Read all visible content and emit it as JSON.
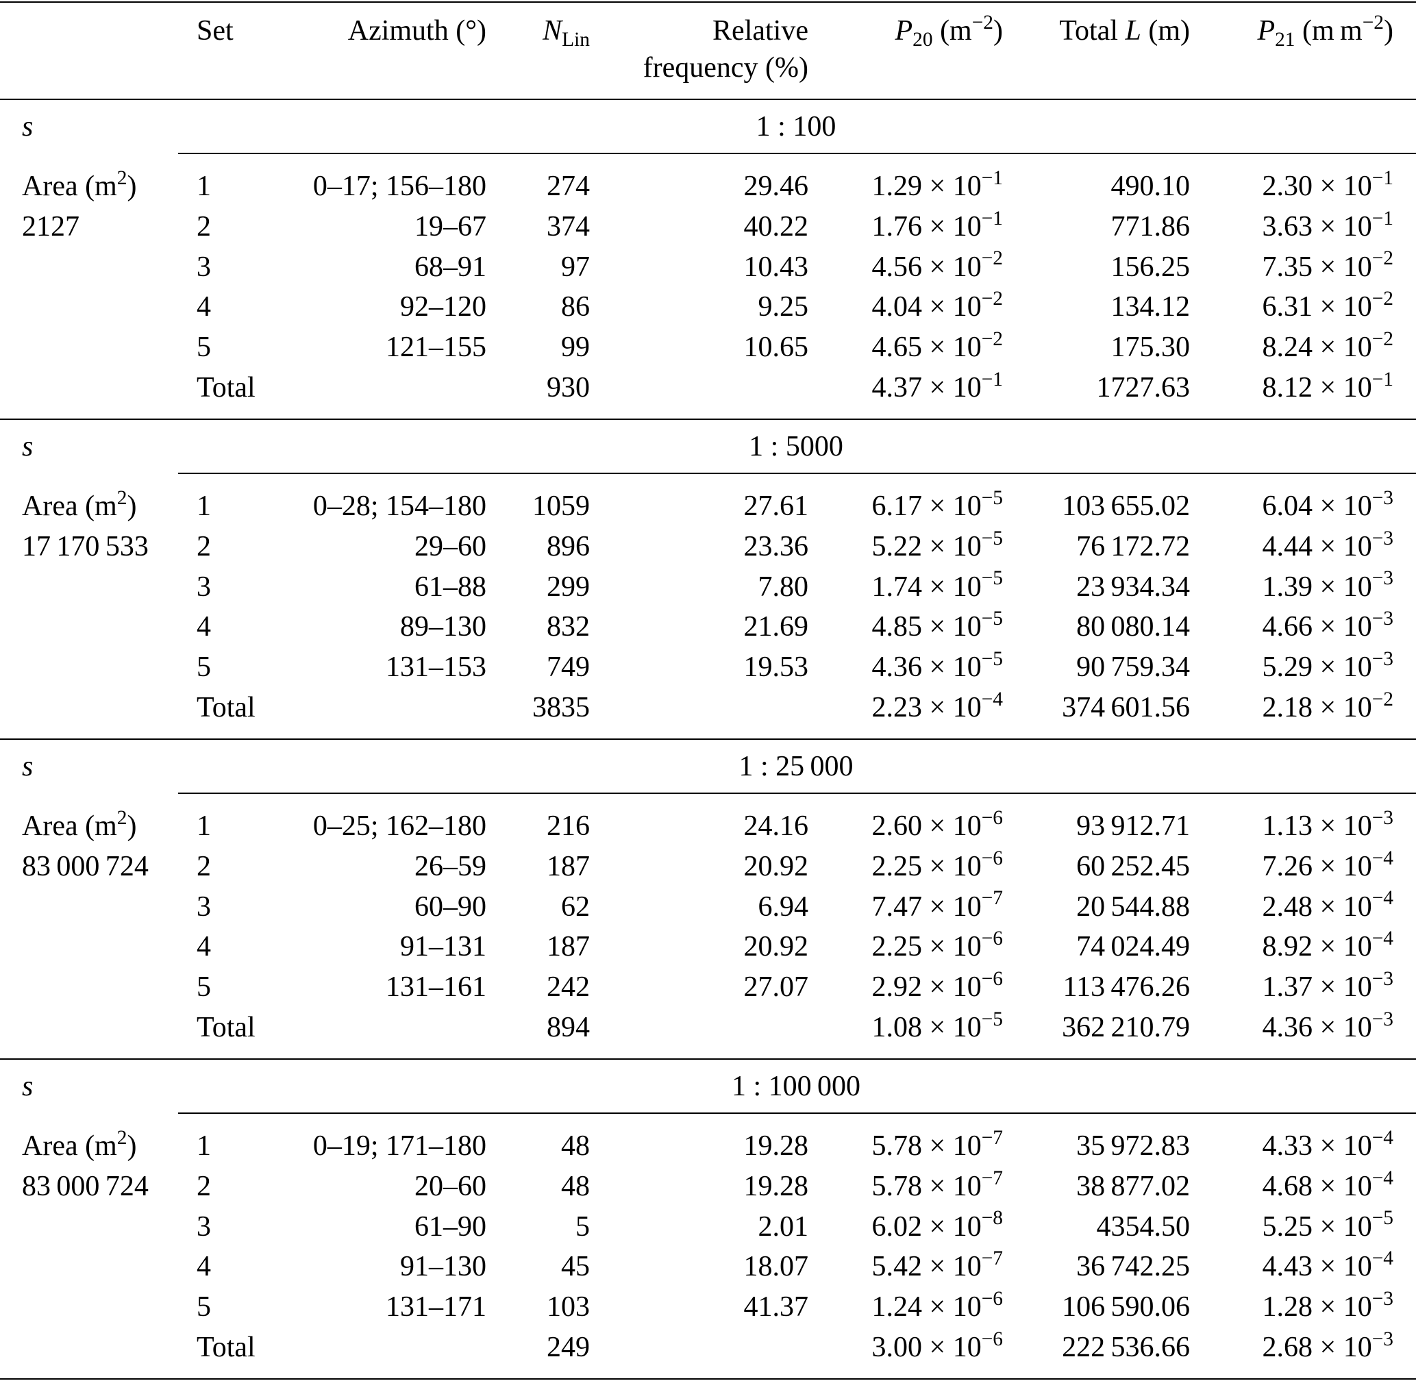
{
  "header": [
    [
      [
        "Set"
      ]
    ],
    [
      [
        "Azimuth (°)"
      ]
    ],
    [
      [
        {
          "i": "N"
        },
        {
          "sub": "Lin"
        }
      ]
    ],
    [
      [
        "Relative"
      ],
      [
        "frequency (%)"
      ]
    ],
    [
      [
        {
          "i": "P"
        },
        {
          "sub": "20"
        },
        " (m",
        {
          "sup": "−2"
        },
        ")"
      ]
    ],
    [
      [
        "Total ",
        {
          "i": "L"
        },
        " (m)"
      ]
    ],
    [
      [
        {
          "i": "P"
        },
        {
          "sub": "21"
        },
        " (m m",
        {
          "sup": "−2"
        },
        ")"
      ]
    ]
  ],
  "sections": [
    {
      "label": [
        {
          "i": "s"
        }
      ],
      "scale": "1 : 100",
      "area_label": [
        "Area (m",
        {
          "sup": "2"
        },
        ")"
      ],
      "area": "2127",
      "rows": [
        [
          "1",
          "0–17; 156–180",
          "274",
          "29.46",
          [
            "1.29 × 10",
            {
              "sup": "−1"
            }
          ],
          "490.10",
          [
            "2.30 × 10",
            {
              "sup": "−1"
            }
          ]
        ],
        [
          "2",
          "19–67",
          "374",
          "40.22",
          [
            "1.76 × 10",
            {
              "sup": "−1"
            }
          ],
          "771.86",
          [
            "3.63 × 10",
            {
              "sup": "−1"
            }
          ]
        ],
        [
          "3",
          "68–91",
          "97",
          "10.43",
          [
            "4.56 × 10",
            {
              "sup": "−2"
            }
          ],
          "156.25",
          [
            "7.35 × 10",
            {
              "sup": "−2"
            }
          ]
        ],
        [
          "4",
          "92–120",
          "86",
          "9.25",
          [
            "4.04 × 10",
            {
              "sup": "−2"
            }
          ],
          "134.12",
          [
            "6.31 × 10",
            {
              "sup": "−2"
            }
          ]
        ],
        [
          "5",
          "121–155",
          "99",
          "10.65",
          [
            "4.65 × 10",
            {
              "sup": "−2"
            }
          ],
          "175.30",
          [
            "8.24 × 10",
            {
              "sup": "−2"
            }
          ]
        ],
        [
          "Total",
          null,
          "930",
          null,
          [
            "4.37 × 10",
            {
              "sup": "−1"
            }
          ],
          "1727.63",
          [
            "8.12 × 10",
            {
              "sup": "−1"
            }
          ]
        ]
      ]
    },
    {
      "label": [
        {
          "i": "s"
        }
      ],
      "scale": "1 : 5000",
      "area_label": [
        "Area (m",
        {
          "sup": "2"
        },
        ")"
      ],
      "area": "17 170 533",
      "rows": [
        [
          "1",
          "0–28; 154–180",
          "1059",
          "27.61",
          [
            "6.17 × 10",
            {
              "sup": "−5"
            }
          ],
          "103 655.02",
          [
            "6.04 × 10",
            {
              "sup": "−3"
            }
          ]
        ],
        [
          "2",
          "29–60",
          "896",
          "23.36",
          [
            "5.22 × 10",
            {
              "sup": "−5"
            }
          ],
          "76 172.72",
          [
            "4.44 × 10",
            {
              "sup": "−3"
            }
          ]
        ],
        [
          "3",
          "61–88",
          "299",
          "7.80",
          [
            "1.74 × 10",
            {
              "sup": "−5"
            }
          ],
          "23 934.34",
          [
            "1.39 × 10",
            {
              "sup": "−3"
            }
          ]
        ],
        [
          "4",
          "89–130",
          "832",
          "21.69",
          [
            "4.85 × 10",
            {
              "sup": "−5"
            }
          ],
          "80 080.14",
          [
            "4.66 × 10",
            {
              "sup": "−3"
            }
          ]
        ],
        [
          "5",
          "131–153",
          "749",
          "19.53",
          [
            "4.36 × 10",
            {
              "sup": "−5"
            }
          ],
          "90 759.34",
          [
            "5.29 × 10",
            {
              "sup": "−3"
            }
          ]
        ],
        [
          "Total",
          null,
          "3835",
          null,
          [
            "2.23 × 10",
            {
              "sup": "−4"
            }
          ],
          "374 601.56",
          [
            "2.18 × 10",
            {
              "sup": "−2"
            }
          ]
        ]
      ]
    },
    {
      "label": [
        {
          "i": "s"
        }
      ],
      "scale": "1 : 25 000",
      "area_label": [
        "Area (m",
        {
          "sup": "2"
        },
        ")"
      ],
      "area": "83 000 724",
      "rows": [
        [
          "1",
          "0–25; 162–180",
          "216",
          "24.16",
          [
            "2.60 × 10",
            {
              "sup": "−6"
            }
          ],
          "93 912.71",
          [
            "1.13 × 10",
            {
              "sup": "−3"
            }
          ]
        ],
        [
          "2",
          "26–59",
          "187",
          "20.92",
          [
            "2.25 × 10",
            {
              "sup": "−6"
            }
          ],
          "60 252.45",
          [
            "7.26 × 10",
            {
              "sup": "−4"
            }
          ]
        ],
        [
          "3",
          "60–90",
          "62",
          "6.94",
          [
            "7.47 × 10",
            {
              "sup": "−7"
            }
          ],
          "20 544.88",
          [
            "2.48 × 10",
            {
              "sup": "−4"
            }
          ]
        ],
        [
          "4",
          "91–131",
          "187",
          "20.92",
          [
            "2.25 × 10",
            {
              "sup": "−6"
            }
          ],
          "74 024.49",
          [
            "8.92 × 10",
            {
              "sup": "−4"
            }
          ]
        ],
        [
          "5",
          "131–161",
          "242",
          "27.07",
          [
            "2.92 × 10",
            {
              "sup": "−6"
            }
          ],
          "113 476.26",
          [
            "1.37 × 10",
            {
              "sup": "−3"
            }
          ]
        ],
        [
          "Total",
          null,
          "894",
          null,
          [
            "1.08 × 10",
            {
              "sup": "−5"
            }
          ],
          "362 210.79",
          [
            "4.36 × 10",
            {
              "sup": "−3"
            }
          ]
        ]
      ]
    },
    {
      "label": [
        {
          "i": "s"
        }
      ],
      "scale": "1 : 100 000",
      "area_label": [
        "Area (m",
        {
          "sup": "2"
        },
        ")"
      ],
      "area": "83 000 724",
      "rows": [
        [
          "1",
          "0–19; 171–180",
          "48",
          "19.28",
          [
            "5.78 × 10",
            {
              "sup": "−7"
            }
          ],
          "35 972.83",
          [
            "4.33 × 10",
            {
              "sup": "−4"
            }
          ]
        ],
        [
          "2",
          "20–60",
          "48",
          "19.28",
          [
            "5.78 × 10",
            {
              "sup": "−7"
            }
          ],
          "38 877.02",
          [
            "4.68 × 10",
            {
              "sup": "−4"
            }
          ]
        ],
        [
          "3",
          "61–90",
          "5",
          "2.01",
          [
            "6.02 × 10",
            {
              "sup": "−8"
            }
          ],
          "4354.50",
          [
            "5.25 × 10",
            {
              "sup": "−5"
            }
          ]
        ],
        [
          "4",
          "91–130",
          "45",
          "18.07",
          [
            "5.42 × 10",
            {
              "sup": "−7"
            }
          ],
          "36 742.25",
          [
            "4.43 × 10",
            {
              "sup": "−4"
            }
          ]
        ],
        [
          "5",
          "131–171",
          "103",
          "41.37",
          [
            "1.24 × 10",
            {
              "sup": "−6"
            }
          ],
          "106 590.06",
          [
            "1.28 × 10",
            {
              "sup": "−3"
            }
          ]
        ],
        [
          "Total",
          null,
          "249",
          null,
          [
            "3.00 × 10",
            {
              "sup": "−6"
            }
          ],
          "222 536.66",
          [
            "2.68 × 10",
            {
              "sup": "−3"
            }
          ]
        ]
      ]
    }
  ]
}
